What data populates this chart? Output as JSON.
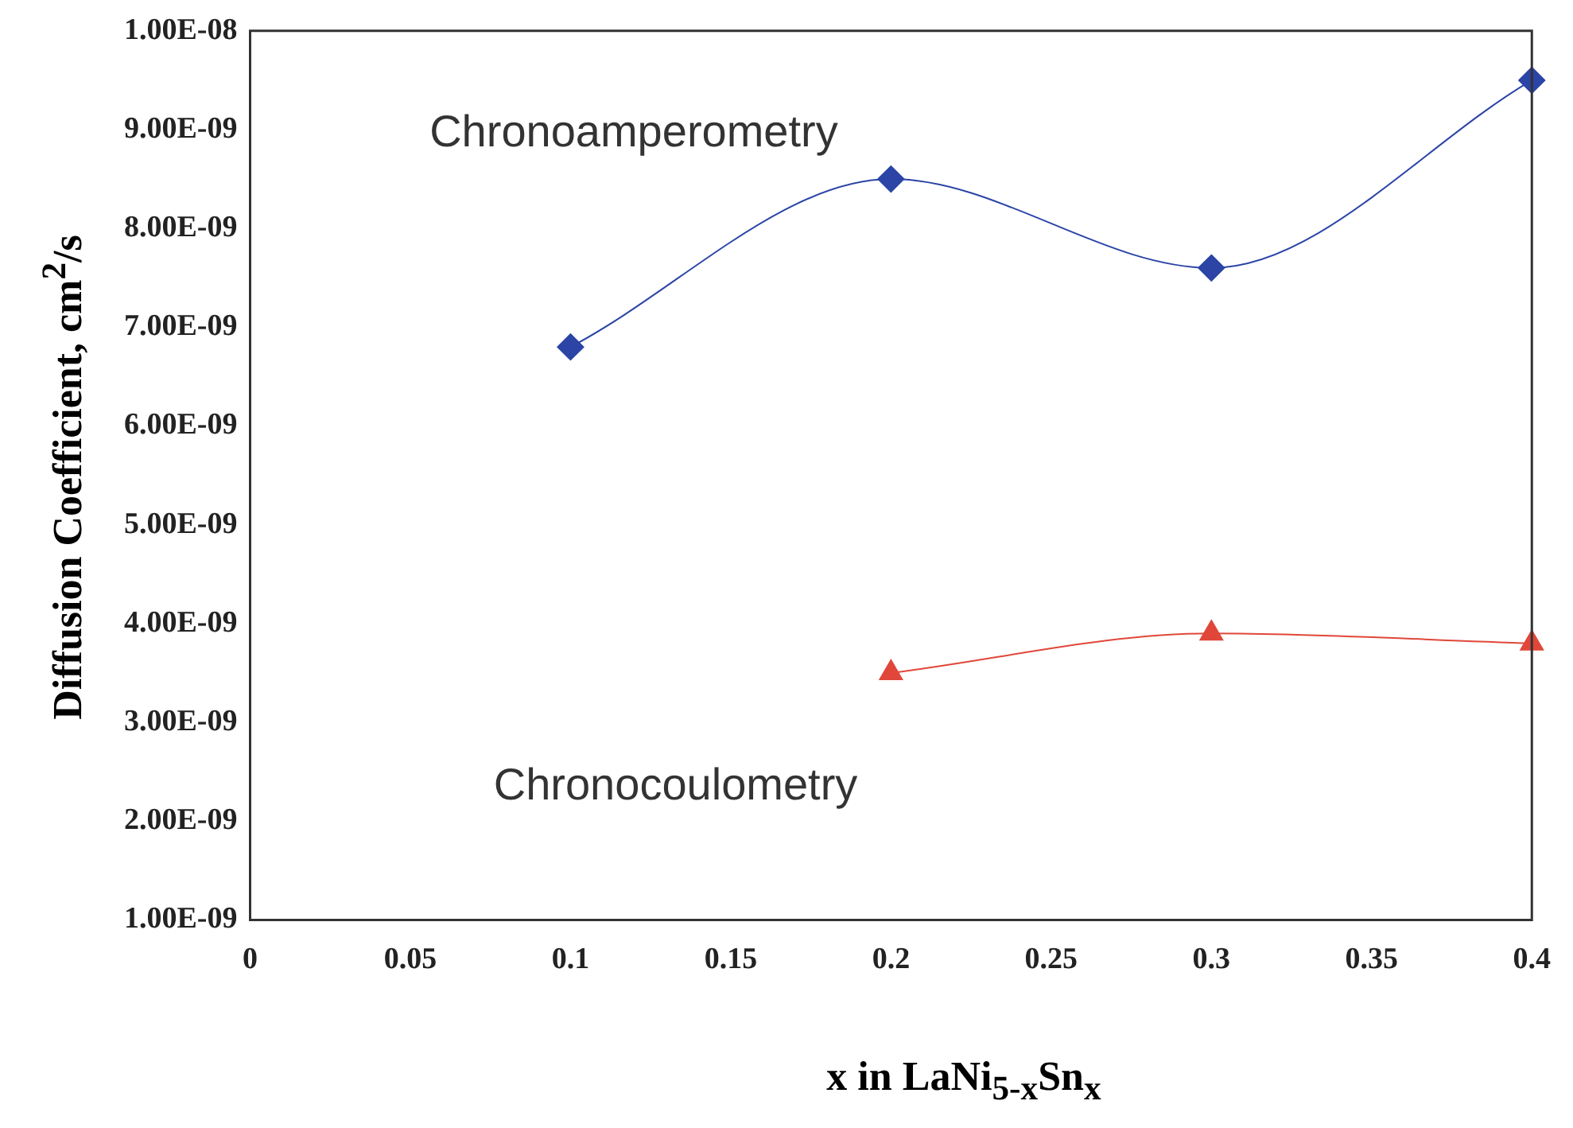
{
  "chart_data": {
    "type": "line",
    "xlabel": "x in LaNi$_{5-x}$Sn$_{x}$",
    "ylabel": "Diffusion Coefficient, cm$^{2}$/s",
    "xlim": [
      0,
      0.4
    ],
    "xticks": [
      0,
      0.05,
      0.1,
      0.15,
      0.2,
      0.25,
      0.3,
      0.35,
      0.4
    ],
    "ylim": [
      1e-09,
      1e-08
    ],
    "yticks": [
      {
        "value": 1e-09,
        "label": "1.00E-09"
      },
      {
        "value": 2e-09,
        "label": "2.00E-09"
      },
      {
        "value": 3e-09,
        "label": "3.00E-09"
      },
      {
        "value": 4e-09,
        "label": "4.00E-09"
      },
      {
        "value": 5e-09,
        "label": "5.00E-09"
      },
      {
        "value": 6e-09,
        "label": "6.00E-09"
      },
      {
        "value": 7e-09,
        "label": "7.00E-09"
      },
      {
        "value": 8e-09,
        "label": "8.00E-09"
      },
      {
        "value": 9e-09,
        "label": "9.00E-09"
      },
      {
        "value": 1e-08,
        "label": "1.00E-08"
      }
    ],
    "grid": false,
    "legend": false,
    "series": [
      {
        "name": "Chronoamperometry",
        "color": "#2b44a6",
        "marker": "diamond",
        "x": [
          0.1,
          0.2,
          0.3,
          0.4
        ],
        "values": [
          6.8e-09,
          8.5e-09,
          7.6e-09,
          9.5e-09
        ]
      },
      {
        "name": "Chronocoulometry",
        "color": "#e0473a",
        "marker": "triangle",
        "x": [
          0.2,
          0.3,
          0.4
        ],
        "values": [
          3.5e-09,
          3.9e-09,
          3.8e-09
        ]
      }
    ]
  }
}
